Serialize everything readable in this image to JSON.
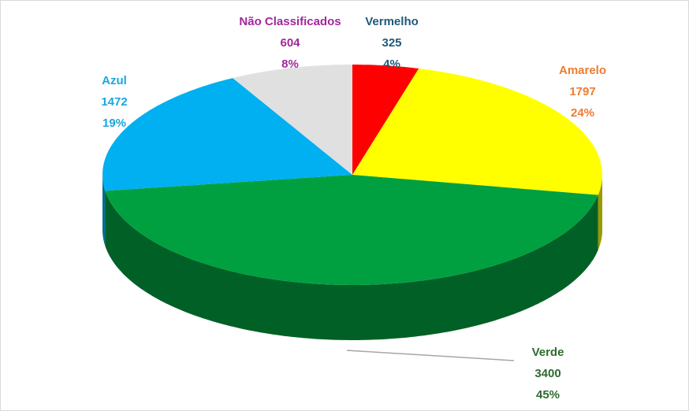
{
  "chart_data": {
    "type": "pie3d",
    "categories": [
      "Vermelho",
      "Amarelo",
      "Verde",
      "Azul",
      "Não Classificados"
    ],
    "values": [
      325,
      1797,
      3400,
      1472,
      604
    ],
    "percent": [
      4,
      24,
      45,
      19,
      8
    ],
    "percent_labels": [
      "4%",
      "24%",
      "45%",
      "19%",
      "8%"
    ],
    "colors": [
      "#ff0000",
      "#ffff00",
      "#00a040",
      "#00b0f0",
      "#e0e0e0"
    ],
    "label_colors": [
      "#1f5a7a",
      "#ed7d31",
      "#2e6b2e",
      "#1aa7e0",
      "#a0289a"
    ]
  }
}
